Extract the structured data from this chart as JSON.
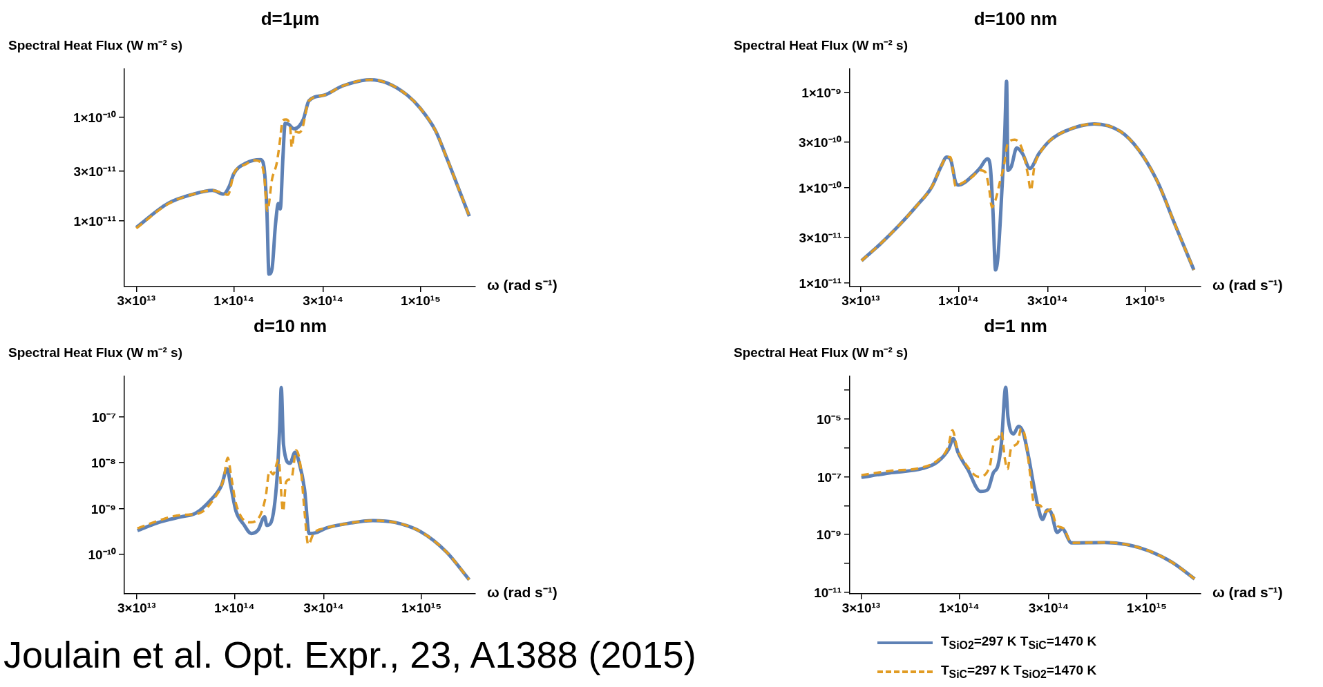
{
  "chart_data": [
    {
      "type": "line",
      "title": "d=1μm",
      "ylabel": "Spectral Heat Flux (W m⁻² s)",
      "xlabel": "ω (rad s⁻¹)",
      "log": "xy",
      "xlim": [
        25900000000000.0,
        1960000000000000.0
      ],
      "ylim": [
        2.3e-12,
        2.9e-10
      ],
      "xticks": [
        {
          "value": 30000000000000.0,
          "label": "3×10¹³"
        },
        {
          "value": 100000000000000.0,
          "label": "1×10¹⁴"
        },
        {
          "value": 300000000000000.0,
          "label": "3×10¹⁴"
        },
        {
          "value": 1000000000000000.0,
          "label": "1×10¹⁵"
        }
      ],
      "yticks": [
        {
          "value": 1e-11,
          "label": "1×10⁻¹¹"
        },
        {
          "value": 3e-11,
          "label": "3×10⁻¹¹"
        },
        {
          "value": 1e-10,
          "label": "1×10⁻¹⁰"
        }
      ],
      "series": [
        {
          "color": "#5e81b5",
          "line_style": "solid",
          "x": [
            30000000000000.0,
            44300000000000.0,
            61000000000000.0,
            76700000000000.0,
            88000000000000.0,
            94200000000000.0,
            100000000000000.0,
            116000000000000.0,
            139000000000000.0,
            144000000000000.0,
            150000000000000.0,
            154000000000000.0,
            160000000000000.0,
            167000000000000.0,
            173000000000000.0,
            177000000000000.0,
            183000000000000.0,
            188000000000000.0,
            196000000000000.0,
            210000000000000.0,
            235000000000000.0,
            252000000000000.0,
            303000000000000.0,
            381000000000000.0,
            537000000000000.0,
            659000000000000.0,
            848000000000000.0,
            995000000000000.0,
            1200000000000000.0,
            1370000000000000.0,
            1610000000000000.0,
            1820000000000000.0
          ],
          "values": [
            8.55e-12,
            1.46e-11,
            1.8e-11,
            1.95e-11,
            1.8e-11,
            2.12e-11,
            2.84e-11,
            3.58e-11,
            3.86e-11,
            3.49e-11,
            1.29e-11,
            3.03e-12,
            3.44e-12,
            9.29e-12,
            1.46e-11,
            1.29e-11,
            4.12e-11,
            8.69e-11,
            8.5e-11,
            7.67e-11,
            9.44e-11,
            1.43e-10,
            1.62e-10,
            1.99e-10,
            2.29e-10,
            2.13e-10,
            1.62e-10,
            1.21e-10,
            7.36e-11,
            4.12e-11,
            1.95e-11,
            1.1e-11
          ]
        },
        {
          "color": "#e19c24",
          "line_style": "dashed",
          "x": [
            30000000000000.0,
            44300000000000.0,
            61000000000000.0,
            76700000000000.0,
            88000000000000.0,
            92900000000000.0,
            100000000000000.0,
            116000000000000.0,
            129000000000000.0,
            139000000000000.0,
            145000000000000.0,
            151000000000000.0,
            160000000000000.0,
            169000000000000.0,
            174000000000000.0,
            183000000000000.0,
            190000000000000.0,
            200000000000000.0,
            204000000000000.0,
            211000000000000.0,
            223000000000000.0,
            232000000000000.0,
            252000000000000.0,
            303000000000000.0,
            381000000000000.0,
            537000000000000.0,
            659000000000000.0,
            848000000000000.0,
            995000000000000.0,
            1200000000000000.0,
            1370000000000000.0,
            1610000000000000.0,
            1820000000000000.0
          ],
          "values": [
            8.4e-12,
            1.44e-11,
            1.8e-11,
            1.95e-11,
            1.82e-11,
            1.77e-11,
            2.84e-11,
            3.5e-11,
            3.8e-11,
            3.64e-11,
            2.72e-11,
            1.24e-11,
            2.51e-11,
            3.49e-11,
            4.86e-11,
            9.28e-11,
            9.44e-11,
            8e-11,
            5.07e-11,
            7.24e-11,
            7.06e-11,
            7.67e-11,
            1.43e-10,
            1.62e-10,
            1.99e-10,
            2.29e-10,
            2.13e-10,
            1.62e-10,
            1.21e-10,
            7.36e-11,
            4.12e-11,
            1.95e-11,
            1.1e-11
          ]
        }
      ]
    },
    {
      "type": "line",
      "title": "d=100 nm",
      "ylabel": "Spectral Heat Flux (W m⁻² s)",
      "xlabel": "ω (rad s⁻¹)",
      "log": "xy",
      "xlim": [
        26200000000000.0,
        1980000000000000.0
      ],
      "ylim": [
        9.1e-12,
        1.76e-09
      ],
      "xticks": [
        {
          "value": 30000000000000.0,
          "label": "3×10¹³"
        },
        {
          "value": 100000000000000.0,
          "label": "1×10¹⁴"
        },
        {
          "value": 300000000000000.0,
          "label": "3×10¹⁴"
        },
        {
          "value": 1000000000000000.0,
          "label": "1×10¹⁵"
        }
      ],
      "yticks": [
        {
          "value": 1e-11,
          "label": "1×10⁻¹¹"
        },
        {
          "value": 3e-11,
          "label": "3×10⁻¹¹"
        },
        {
          "value": 1e-10,
          "label": "1×10⁻¹⁰"
        },
        {
          "value": 3e-10,
          "label": "3×10⁻¹⁰"
        },
        {
          "value": 1e-09,
          "label": "1×10⁻⁹"
        }
      ],
      "series": [
        {
          "color": "#5e81b5",
          "line_style": "solid",
          "x": [
            30300000000000.0,
            38100000000000.0,
            47900000000000.0,
            60100000000000.0,
            72100000000000.0,
            80800000000000.0,
            86500000000000.0,
            90500000000000.0,
            96900000000000.0,
            100000000000000.0,
            119000000000000.0,
            130000000000000.0,
            143000000000000.0,
            148000000000000.0,
            153000000000000.0,
            158000000000000.0,
            163000000000000.0,
            171000000000000.0,
            177000000000000.0,
            181000000000000.0,
            184000000000000.0,
            192000000000000.0,
            205000000000000.0,
            220000000000000.0,
            241000000000000.0,
            270000000000000.0,
            309000000000000.0,
            371000000000000.0,
            533000000000000.0,
            734000000000000.0,
            921000000000000.0,
            1160000000000000.0,
            1450000000000000.0,
            1820000000000000.0
          ],
          "values": [
            1.7e-11,
            2.54e-11,
            3.97e-11,
            6.5e-11,
            1.02e-10,
            1.67e-10,
            2.09e-10,
            2e-10,
            1.11e-10,
            1.06e-10,
            1.33e-10,
            1.59e-10,
            2e-10,
            1.67e-10,
            5.69e-11,
            1.36e-11,
            1.94e-11,
            9.73e-11,
            3.73e-10,
            1.31e-09,
            1.52e-10,
            1.67e-10,
            2.61e-10,
            2.28e-10,
            1.59e-10,
            2.28e-10,
            3.12e-10,
            3.9e-10,
            4.67e-10,
            3.9e-10,
            2.49e-10,
            1.16e-10,
            3.97e-11,
            1.36e-11
          ]
        },
        {
          "color": "#e19c24",
          "line_style": "dashed",
          "x": [
            30300000000000.0,
            38100000000000.0,
            47900000000000.0,
            60100000000000.0,
            72100000000000.0,
            80800000000000.0,
            86500000000000.0,
            90500000000000.0,
            96900000000000.0,
            100000000000000.0,
            119000000000000.0,
            130000000000000.0,
            139000000000000.0,
            146000000000000.0,
            151000000000000.0,
            158000000000000.0,
            167000000000000.0,
            175000000000000.0,
            183000000000000.0,
            200000000000000.0,
            220000000000000.0,
            235000000000000.0,
            244000000000000.0,
            255000000000000.0,
            276000000000000.0,
            309000000000000.0,
            371000000000000.0,
            533000000000000.0,
            734000000000000.0,
            921000000000000.0,
            1160000000000000.0,
            1450000000000000.0,
            1820000000000000.0
          ],
          "values": [
            1.7e-11,
            2.54e-11,
            3.97e-11,
            6.5e-11,
            1.02e-10,
            1.67e-10,
            2.09e-10,
            2.09e-10,
            1.02e-10,
            1.06e-10,
            1.3e-10,
            1.52e-10,
            1.46e-10,
            9.73e-11,
            6.22e-11,
            7.45e-11,
            1.16e-10,
            1.67e-10,
            2.85e-10,
            3.18e-10,
            2.49e-10,
            1.39e-10,
            9.31e-11,
            1.67e-10,
            2.38e-10,
            3.12e-10,
            3.9e-10,
            4.67e-10,
            3.9e-10,
            2.49e-10,
            1.16e-10,
            3.97e-11,
            1.36e-11
          ]
        }
      ]
    },
    {
      "type": "line",
      "title": "d=10 nm",
      "ylabel": "Spectral Heat Flux (W m⁻² s)",
      "xlabel": "ω (rad s⁻¹)",
      "log": "xy",
      "xlim": [
        25800000000000.0,
        1940000000000000.0
      ],
      "ylim": [
        1.37e-11,
        7.6e-07
      ],
      "xticks": [
        {
          "value": 30000000000000.0,
          "label": "3×10¹³"
        },
        {
          "value": 100000000000000.0,
          "label": "1×10¹⁴"
        },
        {
          "value": 300000000000000.0,
          "label": "3×10¹⁴"
        },
        {
          "value": 1000000000000000.0,
          "label": "1×10¹⁵"
        }
      ],
      "yticks": [
        {
          "value": 1e-10,
          "label": "10⁻¹⁰"
        },
        {
          "value": 1e-09,
          "label": "10⁻⁹"
        },
        {
          "value": 1e-08,
          "label": "10⁻⁸"
        },
        {
          "value": 1e-07,
          "label": "10⁻⁷"
        }
      ],
      "annotations": [
        "Joulain et al. Opt. Expr., 23, A1388 (2015)"
      ],
      "series": [
        {
          "color": "#5e81b5",
          "line_style": "solid",
          "x": [
            30300000000000.0,
            39400000000000.0,
            51700000000000.0,
            62100000000000.0,
            74400000000000.0,
            85300000000000.0,
            91400000000000.0,
            95500000000000.0,
            102000000000000.0,
            112000000000000.0,
            123000000000000.0,
            134000000000000.0,
            145000000000000.0,
            149000000000000.0,
            157000000000000.0,
            169000000000000.0,
            175000000000000.0,
            178000000000000.0,
            183000000000000.0,
            198000000000000.0,
            211000000000000.0,
            221000000000000.0,
            237000000000000.0,
            251000000000000.0,
            272000000000000.0,
            311000000000000.0,
            382000000000000.0,
            550000000000000.0,
            721000000000000.0,
            991000000000000.0,
            1360000000000000.0,
            1800000000000000.0
          ],
          "values": [
            3.28e-10,
            4.94e-10,
            6.53e-10,
            7.86e-10,
            1.5e-09,
            3.16e-09,
            7.3e-09,
            3.16e-09,
            8.61e-10,
            4.5e-10,
            2.83e-10,
            3.4e-10,
            6.53e-10,
            4.26e-10,
            4.94e-10,
            4.58e-09,
            7.43e-08,
            4.33e-07,
            2.44e-08,
            9.64e-09,
            1.68e-08,
            1.06e-08,
            2.62e-09,
            2.83e-10,
            2.94e-10,
            3.74e-10,
            4.5e-10,
            5.42e-10,
            4.94e-10,
            3.1e-10,
            1.12e-10,
            2.78e-11
          ]
        },
        {
          "color": "#e19c24",
          "line_style": "dashed",
          "x": [
            30300000000000.0,
            39400000000000.0,
            51700000000000.0,
            65000000000000.0,
            78000000000000.0,
            87300000000000.0,
            92100000000000.0,
            96400000000000.0,
            102000000000000.0,
            120000000000000.0,
            134000000000000.0,
            147000000000000.0,
            154000000000000.0,
            161000000000000.0,
            172000000000000.0,
            182000000000000.0,
            189000000000000.0,
            202000000000000.0,
            214000000000000.0,
            226000000000000.0,
            237000000000000.0,
            248000000000000.0,
            265000000000000.0,
            311000000000000.0,
            382000000000000.0,
            550000000000000.0,
            721000000000000.0,
            991000000000000.0,
            1360000000000000.0,
            1800000000000000.0
          ],
          "values": [
            3.67e-10,
            5.42e-10,
            7.16e-10,
            7.86e-10,
            1.65e-09,
            4.18e-09,
            1.27e-08,
            4.58e-09,
            1.25e-09,
            4.94e-10,
            5.94e-10,
            1.81e-09,
            6.65e-09,
            5.52e-09,
            1.16e-08,
            8.61e-10,
            3.81e-09,
            4.58e-09,
            1.85e-08,
            8e-09,
            8.61e-10,
            1.62e-10,
            2.83e-10,
            3.74e-10,
            4.5e-10,
            5.42e-10,
            4.94e-10,
            3.1e-10,
            1.12e-10,
            2.78e-11
          ]
        }
      ]
    },
    {
      "type": "line",
      "title": "d=1 nm",
      "ylabel": "Spectral Heat Flux (W m⁻² s)",
      "xlabel": "ω (rad s⁻¹)",
      "log": "xy",
      "xlim": [
        26100000000000.0,
        1940000000000000.0
      ],
      "ylim": [
        8.9e-12,
        0.0003
      ],
      "legend": "bottom",
      "xticks": [
        {
          "value": 30000000000000.0,
          "label": "3×10¹³"
        },
        {
          "value": 100000000000000.0,
          "label": "1×10¹⁴"
        },
        {
          "value": 300000000000000.0,
          "label": "3×10¹⁴"
        },
        {
          "value": 1000000000000000.0,
          "label": "1×10¹⁵"
        }
      ],
      "yticks": [
        {
          "value": 1e-11,
          "label": "10⁻¹¹"
        },
        {
          "value": 1e-10,
          "label": null
        },
        {
          "value": 1e-09,
          "label": "10⁻⁹"
        },
        {
          "value": 1e-08,
          "label": null
        },
        {
          "value": 1e-07,
          "label": "10⁻⁷"
        },
        {
          "value": 1e-06,
          "label": null
        },
        {
          "value": 1e-05,
          "label": "10⁻⁵"
        },
        {
          "value": 0.0001,
          "label": null
        }
      ],
      "series": [
        {
          "name": "T$_{SiO2}$=297 K T$_{SiC}$=1470 K",
          "color": "#5e81b5",
          "line_style": "solid",
          "x": [
            30100000000000.0,
            42400000000000.0,
            64000000000000.0,
            76800000000000.0,
            88100000000000.0,
            93000000000000.0,
            98600000000000.0,
            111000000000000.0,
            130000000000000.0,
            142000000000000.0,
            152000000000000.0,
            161000000000000.0,
            168000000000000.0,
            177000000000000.0,
            182000000000000.0,
            195000000000000.0,
            207000000000000.0,
            219000000000000.0,
            235000000000000.0,
            251000000000000.0,
            263000000000000.0,
            278000000000000.0,
            295000000000000.0,
            308000000000000.0,
            333000000000000.0,
            354000000000000.0,
            397000000000000.0,
            597000000000000.0,
            785000000000000.0,
            1030000000000000.0,
            1360000000000000.0,
            1800000000000000.0
          ],
          "values": [
            9.53e-08,
            1.36e-07,
            1.94e-07,
            3.31e-07,
            9.33e-07,
            2.08e-06,
            6.95e-07,
            1.83e-07,
            3.09e-08,
            3.59e-08,
            1.36e-07,
            2.46e-07,
            1.46e-06,
            0.000124,
            1.16e-05,
            3.05e-06,
            5.53e-06,
            3.55e-06,
            4.46e-07,
            4.16e-08,
            9.46e-09,
            3.35e-09,
            7.03e-09,
            6.06e-09,
            1.19e-09,
            1.6e-09,
            5.18e-10,
            5.33e-10,
            4.47e-10,
            2.7e-10,
            1.11e-10,
            2.92e-11
          ]
        },
        {
          "name": "T$_{SiC}$=297 K T$_{SiO2}$=1470 K",
          "color": "#e19c24",
          "line_style": "dashed",
          "x": [
            30100000000000.0,
            42400000000000.0,
            64000000000000.0,
            76800000000000.0,
            87300000000000.0,
            92100000000000.0,
            97700000000000.0,
            108000000000000.0,
            127000000000000.0,
            145000000000000.0,
            154000000000000.0,
            161000000000000.0,
            168000000000000.0,
            175000000000000.0,
            181000000000000.0,
            189000000000000.0,
            205000000000000.0,
            214000000000000.0,
            224000000000000.0,
            240000000000000.0,
            251000000000000.0,
            269000000000000.0,
            288000000000000.0,
            308000000000000.0,
            330000000000000.0,
            361000000000000.0,
            397000000000000.0,
            597000000000000.0,
            785000000000000.0,
            1030000000000000.0,
            1360000000000000.0,
            1800000000000000.0
          ],
          "values": [
            1.14e-07,
            1.58e-07,
            2.12e-07,
            3.73e-07,
            1.08e-06,
            4.11e-06,
            9.33e-07,
            2.86e-07,
            1e-07,
            2.12e-07,
            1.69e-06,
            2.08e-06,
            3.55e-06,
            4.46e-07,
            1.83e-07,
            9.33e-07,
            1.46e-06,
            4.76e-06,
            2.64e-06,
            1e-07,
            1.1e-08,
            1.03e-08,
            6.06e-09,
            7.46e-09,
            2.15e-09,
            1.6e-09,
            5.18e-10,
            5.33e-10,
            4.47e-10,
            2.7e-10,
            1.11e-10,
            2.92e-11
          ]
        }
      ]
    }
  ]
}
